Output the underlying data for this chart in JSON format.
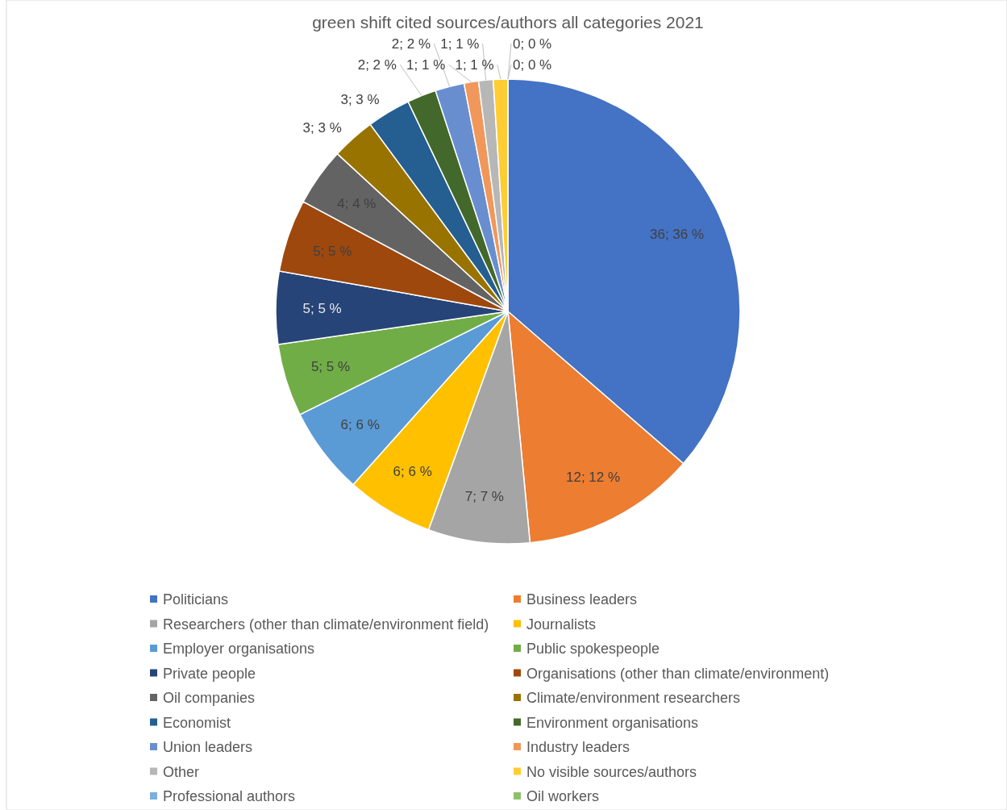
{
  "chart_data": {
    "type": "pie",
    "title": "green shift cited sources/authors all categories 2021",
    "categories": [
      "Politicians",
      "Business leaders",
      "Researchers (other than climate/environment field)",
      "Journalists",
      "Employer organisations",
      "Public spokespeople",
      "Private people",
      "Organisations (other than climate/environment)",
      "Oil companies",
      "Climate/environment researchers",
      "Economist",
      "Environment organisations",
      "Union leaders",
      "Industry leaders",
      "Other",
      "No visible sources/authors",
      "Professional authors",
      "Oil workers"
    ],
    "values": [
      36,
      12,
      7,
      6,
      6,
      5,
      5,
      5,
      4,
      3,
      3,
      2,
      2,
      1,
      1,
      1,
      0,
      0
    ],
    "value_labels": [
      "36; 36 %",
      "12; 12 %",
      "7; 7 %",
      "6; 6 %",
      "6; 6 %",
      "5; 5 %",
      "5; 5 %",
      "5; 5 %",
      "4; 4 %",
      "3; 3 %",
      "3; 3 %",
      "2; 2 %",
      "2; 2 %",
      "1; 1 %",
      "1; 1 %",
      "1; 1 %",
      "0; 0 %",
      "0; 0 %"
    ],
    "colors": [
      "#4472c4",
      "#ed7d31",
      "#a5a5a5",
      "#ffc000",
      "#5b9bd5",
      "#70ad47",
      "#264478",
      "#9e480e",
      "#636363",
      "#997300",
      "#255e91",
      "#43682b",
      "#698ed0",
      "#f1975a",
      "#b7b7b7",
      "#ffcd33",
      "#7cafdd",
      "#8cc168"
    ],
    "legend": "bottom"
  }
}
